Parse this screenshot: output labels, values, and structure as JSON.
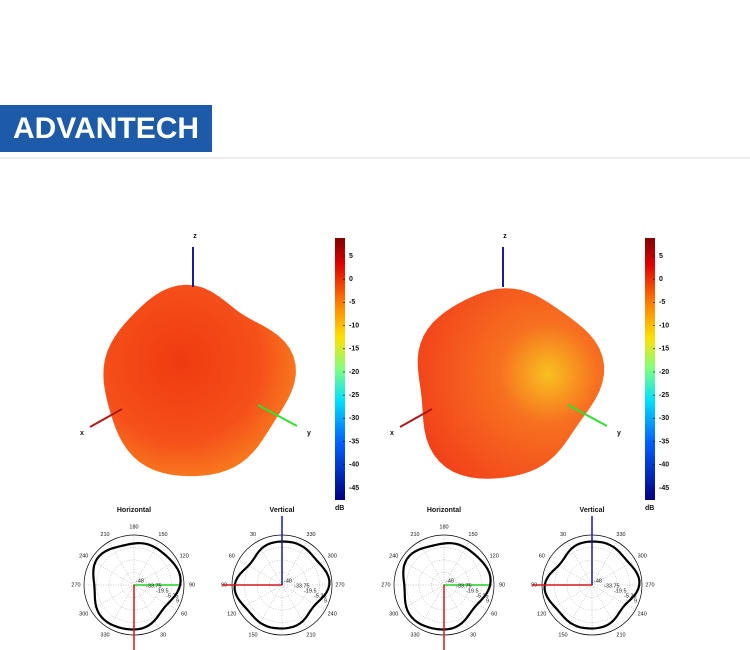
{
  "header": {
    "logo": "ADVANTECH"
  },
  "patterns": [
    {
      "axes": {
        "z": "z",
        "x": "x",
        "y": "y"
      },
      "colorbar": {
        "ticks": [
          "5",
          "0",
          "-5",
          "-10",
          "-15",
          "-20",
          "-25",
          "-30",
          "-35",
          "-40",
          "-45"
        ],
        "unit": "dB"
      },
      "polar": [
        {
          "title": "Horizontal",
          "angles": [
            "180",
            "150",
            "120",
            "90",
            "60",
            "30",
            "330",
            "300",
            "270",
            "240",
            "210"
          ],
          "radial": [
            "-48",
            "-33.75",
            "-19.5",
            "-5.25",
            "9"
          ]
        },
        {
          "title": "Vertical",
          "angles": [
            "30",
            "330",
            "300",
            "270",
            "240",
            "210",
            "150",
            "120",
            "90",
            "60"
          ],
          "radial": [
            "-48",
            "-33.75",
            "-19.5",
            "-5.25",
            "9"
          ]
        }
      ]
    },
    {
      "axes": {
        "z": "z",
        "x": "x",
        "y": "y"
      },
      "colorbar": {
        "ticks": [
          "5",
          "0",
          "-5",
          "-10",
          "-15",
          "-20",
          "-25",
          "-30",
          "-35",
          "-40",
          "-45"
        ],
        "unit": "dB"
      },
      "polar": [
        {
          "title": "Horizontal",
          "angles": [
            "180",
            "150",
            "120",
            "90",
            "60",
            "30",
            "330",
            "300",
            "270",
            "240",
            "210"
          ],
          "radial": [
            "-48",
            "-33.75",
            "-19.5",
            "-5.25",
            "9"
          ]
        },
        {
          "title": "Vertical",
          "angles": [
            "30",
            "330",
            "300",
            "270",
            "240",
            "210",
            "150",
            "120",
            "90",
            "60"
          ],
          "radial": [
            "-48",
            "-33.75",
            "-19.5",
            "-5.25",
            "9"
          ]
        }
      ]
    }
  ]
}
